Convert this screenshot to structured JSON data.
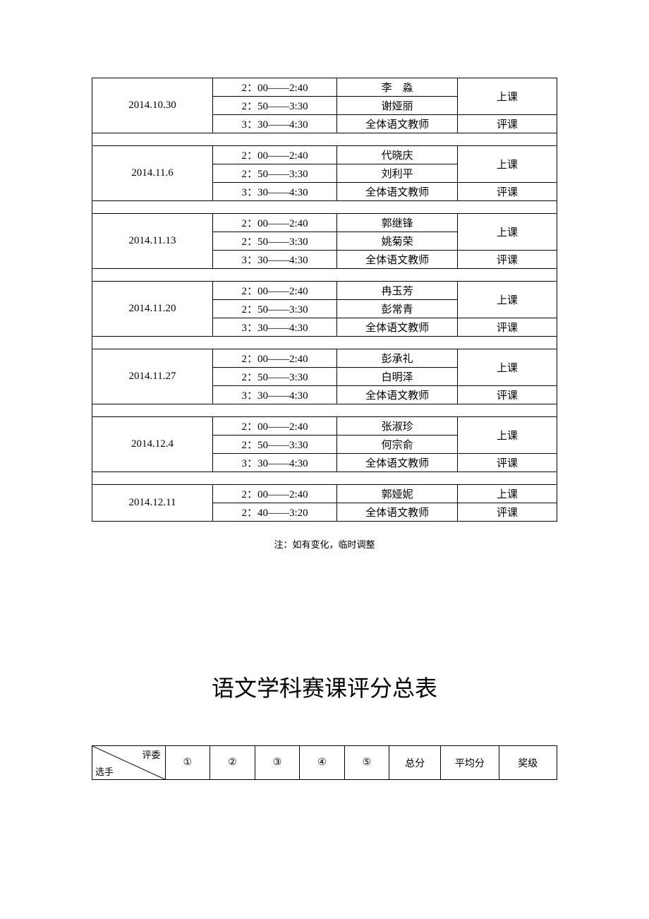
{
  "schedule": {
    "groups": [
      {
        "date": "2014.10.30",
        "rows": [
          {
            "time": "2：00——2:40",
            "name": "李　淼",
            "type_rowspan": true,
            "type": "上课"
          },
          {
            "time": "2：50——3:30",
            "name": "谢娅丽"
          },
          {
            "time": "3：30——4:30",
            "name": "全体语文教师",
            "type": "评课"
          }
        ]
      },
      {
        "date": "2014.11.6",
        "rows": [
          {
            "time": "2：00——2:40",
            "name": "代晓庆",
            "type_rowspan": true,
            "type": "上课"
          },
          {
            "time": "2：50——3:30",
            "name": "刘利平"
          },
          {
            "time": "3：30——4:30",
            "name": "全体语文教师",
            "type": "评课"
          }
        ]
      },
      {
        "date": "2014.11.13",
        "rows": [
          {
            "time": "2：00——2:40",
            "name": "郭继锋",
            "type_rowspan": true,
            "type": "上课"
          },
          {
            "time": "2：50——3:30",
            "name": "姚菊荣"
          },
          {
            "time": "3：30——4:30",
            "name": "全体语文教师",
            "type": "评课"
          }
        ]
      },
      {
        "date": "2014.11.20",
        "rows": [
          {
            "time": "2：00——2:40",
            "name": "冉玉芳",
            "type_rowspan": true,
            "type": "上课"
          },
          {
            "time": "2：50——3:30",
            "name": "彭常青"
          },
          {
            "time": "3：30——4:30",
            "name": "全体语文教师",
            "type": "评课"
          }
        ]
      },
      {
        "date": "2014.11.27",
        "rows": [
          {
            "time": "2：00——2:40",
            "name": "彭承礼",
            "type_rowspan": true,
            "type": "上课"
          },
          {
            "time": "2：50——3:30",
            "name": "白明泽"
          },
          {
            "time": "3：30——4:30",
            "name": "全体语文教师",
            "type": "评课"
          }
        ]
      },
      {
        "date": "2014.12.4",
        "rows": [
          {
            "time": "2：00——2:40",
            "name": "张淑珍",
            "type_rowspan": true,
            "type": "上课"
          },
          {
            "time": "2：50——3:30",
            "name": "何宗俞"
          },
          {
            "time": "3：30——4:30",
            "name": "全体语文教师",
            "type": "评课"
          }
        ]
      },
      {
        "date": "2014.12.11",
        "rows": [
          {
            "time": "2：00——2:40",
            "name": "郭娅妮",
            "type": "上课"
          },
          {
            "time": "2：40——3:20",
            "name": "全体语文教师",
            "type": "评课"
          }
        ],
        "two_row": true
      }
    ]
  },
  "note": "注：如有变化，临时调整",
  "score_title": "语文学科赛课评分总表",
  "score_header": {
    "diag_top": "评委",
    "diag_bot": "选手",
    "cols": [
      "①",
      "②",
      "③",
      "④",
      "⑤",
      "总分",
      "平均分",
      "奖级"
    ]
  }
}
